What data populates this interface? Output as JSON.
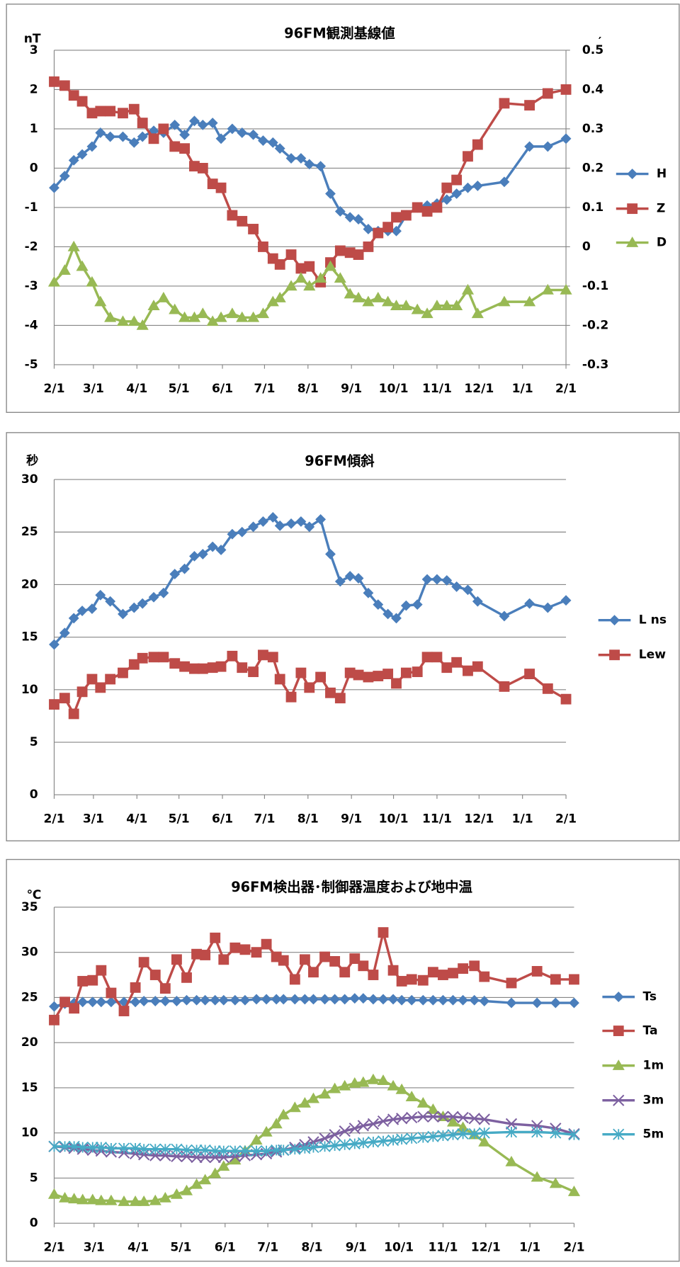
{
  "chart_data": [
    {
      "type": "line",
      "title": "96FM観測基線値",
      "ylabel": "nT",
      "y2label": "′",
      "x": [
        0,
        7.5,
        14,
        20,
        27,
        33,
        40,
        49,
        57,
        63,
        71,
        78,
        86,
        93,
        100,
        106,
        113,
        119,
        127,
        134,
        142,
        149,
        156,
        161,
        169,
        176,
        182,
        190,
        197,
        204,
        211,
        217,
        224,
        231,
        238,
        244,
        251,
        259,
        266,
        273,
        280,
        287,
        295,
        302,
        321,
        339,
        352,
        365
      ],
      "xlim": [
        0,
        365
      ],
      "xticks": [
        {
          "value": 0,
          "label": "2/1"
        },
        {
          "value": 28,
          "label": "3/1"
        },
        {
          "value": 59,
          "label": "4/1"
        },
        {
          "value": 89,
          "label": "5/1"
        },
        {
          "value": 120,
          "label": "6/1"
        },
        {
          "value": 150,
          "label": "7/1"
        },
        {
          "value": 181,
          "label": "8/1"
        },
        {
          "value": 212,
          "label": "9/1"
        },
        {
          "value": 242,
          "label": "10/1"
        },
        {
          "value": 273,
          "label": "11/1"
        },
        {
          "value": 303,
          "label": "12/1"
        },
        {
          "value": 334,
          "label": "1/1"
        },
        {
          "value": 365,
          "label": "2/1"
        }
      ],
      "ylim": [
        -5,
        3
      ],
      "yticks": [
        -5,
        -4,
        -3,
        -2,
        -1,
        0,
        1,
        2,
        3
      ],
      "y2lim": [
        -0.3,
        0.5
      ],
      "y2ticks": [
        -0.3,
        -0.2,
        -0.1,
        0,
        0.1,
        0.2,
        0.3,
        0.4,
        0.5
      ],
      "grid": true,
      "legend": "right",
      "series": [
        {
          "name": "H",
          "color": "#4a7ebb",
          "marker": "diamond",
          "values": [
            -0.5,
            -0.2,
            0.2,
            0.35,
            0.55,
            0.9,
            0.8,
            0.8,
            0.65,
            0.8,
            0.95,
            0.9,
            1.1,
            0.85,
            1.2,
            1.1,
            1.15,
            0.75,
            1.0,
            0.9,
            0.85,
            0.7,
            0.65,
            0.5,
            0.25,
            0.25,
            0.1,
            0.05,
            -0.65,
            -1.1,
            -1.25,
            -1.3,
            -1.55,
            -1.6,
            -1.6,
            -1.6,
            -1.2,
            -1.0,
            -0.95,
            -0.9,
            -0.8,
            -0.65,
            -0.5,
            -0.45,
            -0.35,
            0.55,
            0.55,
            0.75
          ]
        },
        {
          "name": "Z",
          "color": "#be4b48",
          "marker": "square",
          "values": [
            2.2,
            2.1,
            1.85,
            1.7,
            1.4,
            1.45,
            1.45,
            1.4,
            1.5,
            1.15,
            0.75,
            1.0,
            0.55,
            0.5,
            0.05,
            0.0,
            -0.4,
            -0.5,
            -1.2,
            -1.35,
            -1.55,
            -2.0,
            -2.3,
            -2.45,
            -2.2,
            -2.55,
            -2.5,
            -2.9,
            -2.4,
            -2.1,
            -2.15,
            -2.2,
            -2.0,
            -1.65,
            -1.5,
            -1.25,
            -1.2,
            -1.0,
            -1.1,
            -1.0,
            -0.5,
            -0.3,
            0.3,
            0.6,
            1.65,
            1.6,
            1.9,
            2.0
          ]
        },
        {
          "name": "D",
          "color": "#98b954",
          "marker": "triangle",
          "axis": "y2",
          "values": [
            -0.09,
            -0.06,
            0.0,
            -0.05,
            -0.09,
            -0.14,
            -0.18,
            -0.19,
            -0.19,
            -0.2,
            -0.15,
            -0.13,
            -0.16,
            -0.18,
            -0.18,
            -0.17,
            -0.19,
            -0.18,
            -0.17,
            -0.18,
            -0.18,
            -0.17,
            -0.14,
            -0.13,
            -0.1,
            -0.08,
            -0.1,
            -0.08,
            -0.05,
            -0.08,
            -0.12,
            -0.13,
            -0.14,
            -0.13,
            -0.14,
            -0.15,
            -0.15,
            -0.16,
            -0.17,
            -0.15,
            -0.15,
            -0.15,
            -0.11,
            -0.17,
            -0.14,
            -0.14,
            -0.11,
            -0.11
          ]
        }
      ]
    },
    {
      "type": "line",
      "title": "96FM傾斜",
      "ylabel": "秒",
      "x": [
        0,
        7.5,
        14,
        20,
        27,
        33,
        40,
        49,
        57,
        63,
        71,
        78,
        86,
        93,
        100,
        106,
        113,
        119,
        127,
        134,
        142,
        149,
        156,
        161,
        169,
        176,
        182,
        190,
        197,
        204,
        211,
        217,
        224,
        231,
        238,
        244,
        251,
        259,
        266,
        273,
        280,
        287,
        295,
        302,
        321,
        339,
        352,
        365
      ],
      "xlim": [
        0,
        365
      ],
      "xticks": [
        {
          "value": 0,
          "label": "2/1"
        },
        {
          "value": 28,
          "label": "3/1"
        },
        {
          "value": 59,
          "label": "4/1"
        },
        {
          "value": 89,
          "label": "5/1"
        },
        {
          "value": 120,
          "label": "6/1"
        },
        {
          "value": 150,
          "label": "7/1"
        },
        {
          "value": 181,
          "label": "8/1"
        },
        {
          "value": 212,
          "label": "9/1"
        },
        {
          "value": 242,
          "label": "10/1"
        },
        {
          "value": 273,
          "label": "11/1"
        },
        {
          "value": 303,
          "label": "12/1"
        },
        {
          "value": 334,
          "label": "1/1"
        },
        {
          "value": 365,
          "label": "2/1"
        }
      ],
      "ylim": [
        0,
        30
      ],
      "yticks": [
        0,
        5,
        10,
        15,
        20,
        25,
        30
      ],
      "grid": true,
      "legend": "right",
      "series": [
        {
          "name": "L ns",
          "color": "#4a7ebb",
          "marker": "diamond",
          "values": [
            14.3,
            15.4,
            16.8,
            17.5,
            17.7,
            19.0,
            18.4,
            17.2,
            17.8,
            18.2,
            18.8,
            19.2,
            21.0,
            21.5,
            22.7,
            22.9,
            23.6,
            23.3,
            24.8,
            25.0,
            25.5,
            26.0,
            26.4,
            25.6,
            25.8,
            26.0,
            25.5,
            26.2,
            22.9,
            20.3,
            20.8,
            20.6,
            19.2,
            18.1,
            17.2,
            16.8,
            18.0,
            18.1,
            20.5,
            20.5,
            20.4,
            19.8,
            19.5,
            18.4,
            17.0,
            18.2,
            17.8,
            18.5
          ]
        },
        {
          "name": "Lew",
          "color": "#be4b48",
          "marker": "square",
          "values": [
            8.6,
            9.2,
            7.7,
            9.8,
            11.0,
            10.2,
            11.0,
            11.6,
            12.4,
            13.0,
            13.1,
            13.1,
            12.5,
            12.2,
            12.0,
            12.0,
            12.1,
            12.2,
            13.2,
            12.1,
            11.7,
            13.3,
            13.1,
            11.0,
            9.3,
            11.6,
            10.2,
            11.2,
            9.7,
            9.2,
            11.6,
            11.4,
            11.2,
            11.3,
            11.5,
            10.6,
            11.6,
            11.7,
            13.1,
            13.1,
            12.1,
            12.6,
            11.8,
            12.2,
            10.3,
            11.5,
            10.1,
            9.1
          ]
        }
      ]
    },
    {
      "type": "line",
      "title": "96FM検出器･制御器温度および地中温",
      "ylabel": "℃",
      "x": [
        0,
        7.5,
        14,
        20,
        27,
        33,
        40,
        49,
        57,
        63,
        71,
        78,
        86,
        93,
        100,
        106,
        113,
        119,
        127,
        134,
        142,
        149,
        156,
        161,
        169,
        176,
        182,
        190,
        197,
        204,
        211,
        217,
        224,
        231,
        238,
        244,
        251,
        259,
        266,
        273,
        280,
        287,
        295,
        302,
        321,
        339,
        352,
        365
      ],
      "xlim": [
        0,
        365
      ],
      "xticks": [
        {
          "value": 0,
          "label": "2/1"
        },
        {
          "value": 28,
          "label": "3/1"
        },
        {
          "value": 59,
          "label": "4/1"
        },
        {
          "value": 89,
          "label": "5/1"
        },
        {
          "value": 120,
          "label": "6/1"
        },
        {
          "value": 150,
          "label": "7/1"
        },
        {
          "value": 181,
          "label": "8/1"
        },
        {
          "value": 212,
          "label": "9/1"
        },
        {
          "value": 242,
          "label": "10/1"
        },
        {
          "value": 273,
          "label": "11/1"
        },
        {
          "value": 303,
          "label": "12/1"
        },
        {
          "value": 334,
          "label": "1/1"
        },
        {
          "value": 365,
          "label": "2/1"
        }
      ],
      "ylim": [
        0,
        35
      ],
      "yticks": [
        0,
        5,
        10,
        15,
        20,
        25,
        30,
        35
      ],
      "grid": true,
      "legend": "right",
      "series": [
        {
          "name": "Ts",
          "color": "#4a7ebb",
          "marker": "diamond",
          "values": [
            24.0,
            24.3,
            24.4,
            24.5,
            24.5,
            24.5,
            24.5,
            24.5,
            24.5,
            24.6,
            24.6,
            24.6,
            24.6,
            24.7,
            24.7,
            24.7,
            24.7,
            24.7,
            24.7,
            24.7,
            24.8,
            24.8,
            24.8,
            24.8,
            24.8,
            24.8,
            24.8,
            24.8,
            24.8,
            24.8,
            24.9,
            24.9,
            24.8,
            24.8,
            24.8,
            24.7,
            24.7,
            24.7,
            24.7,
            24.7,
            24.7,
            24.7,
            24.7,
            24.6,
            24.4,
            24.4,
            24.4,
            24.4
          ]
        },
        {
          "name": "Ta",
          "color": "#be4b48",
          "marker": "square",
          "values": [
            22.5,
            24.5,
            23.8,
            26.8,
            26.9,
            28.0,
            25.5,
            23.5,
            26.1,
            28.9,
            27.5,
            26.0,
            29.2,
            27.2,
            29.8,
            29.7,
            31.6,
            29.2,
            30.5,
            30.3,
            30.0,
            30.9,
            29.5,
            29.1,
            27.0,
            29.2,
            27.8,
            29.5,
            29.0,
            27.8,
            29.3,
            28.5,
            27.5,
            32.2,
            28.0,
            26.8,
            27.0,
            26.9,
            27.8,
            27.5,
            27.7,
            28.2,
            28.5,
            27.3,
            26.6,
            27.9,
            27.0,
            27.0
          ]
        },
        {
          "name": "1m",
          "color": "#98b954",
          "marker": "triangle",
          "values": [
            3.2,
            2.8,
            2.7,
            2.6,
            2.6,
            2.5,
            2.5,
            2.4,
            2.4,
            2.4,
            2.5,
            2.8,
            3.2,
            3.6,
            4.3,
            4.8,
            5.5,
            6.3,
            7.0,
            8.0,
            9.2,
            10.1,
            11.0,
            12.0,
            12.8,
            13.3,
            13.8,
            14.3,
            14.9,
            15.2,
            15.5,
            15.6,
            15.9,
            15.8,
            15.2,
            14.8,
            14.0,
            13.3,
            12.6,
            11.8,
            11.2,
            10.6,
            9.8,
            9.0,
            6.8,
            5.1,
            4.4,
            3.5
          ]
        },
        {
          "name": "3m",
          "color": "#7d60a0",
          "marker": "x",
          "values": [
            8.5,
            8.4,
            8.3,
            8.2,
            8.1,
            8.0,
            7.9,
            7.8,
            7.7,
            7.6,
            7.5,
            7.5,
            7.4,
            7.4,
            7.3,
            7.3,
            7.3,
            7.3,
            7.4,
            7.5,
            7.6,
            7.7,
            7.9,
            8.1,
            8.4,
            8.7,
            9.0,
            9.4,
            9.8,
            10.2,
            10.5,
            10.8,
            11.0,
            11.3,
            11.5,
            11.6,
            11.7,
            11.8,
            11.8,
            11.8,
            11.8,
            11.7,
            11.6,
            11.5,
            11.0,
            10.8,
            10.5,
            9.9
          ]
        },
        {
          "name": "5m",
          "color": "#46aac5",
          "marker": "star",
          "values": [
            8.5,
            8.5,
            8.5,
            8.4,
            8.4,
            8.4,
            8.3,
            8.3,
            8.3,
            8.2,
            8.2,
            8.2,
            8.2,
            8.1,
            8.1,
            8.1,
            8.0,
            8.0,
            8.0,
            8.0,
            8.0,
            8.0,
            8.1,
            8.1,
            8.2,
            8.3,
            8.4,
            8.5,
            8.6,
            8.7,
            8.8,
            8.9,
            9.0,
            9.1,
            9.2,
            9.3,
            9.4,
            9.5,
            9.6,
            9.7,
            9.8,
            9.9,
            9.9,
            10.0,
            10.1,
            10.1,
            10.0,
            9.8
          ]
        }
      ]
    }
  ]
}
